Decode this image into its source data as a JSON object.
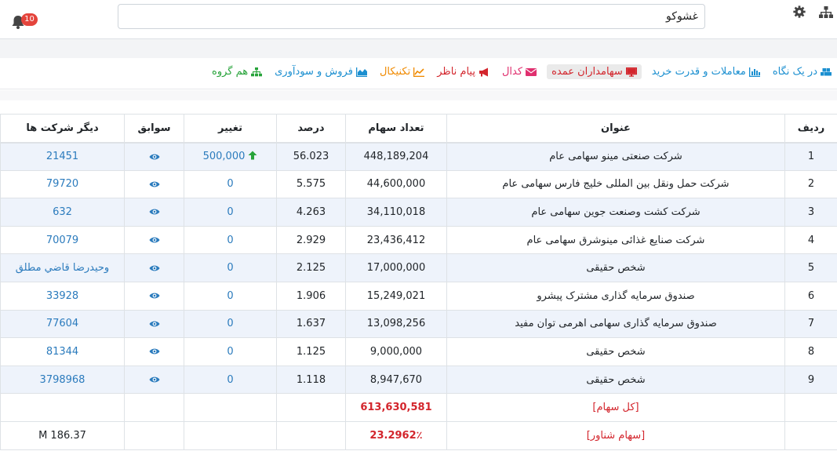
{
  "header": {
    "search_value": "غشوکو",
    "notification_count": "10",
    "org_icon": "sitemap-icon",
    "settings_icon": "gear-icon",
    "bell_icon": "bell-icon"
  },
  "nav": {
    "items": [
      {
        "label": "در یک نگاه",
        "icon": "cubes-icon",
        "color": "#1b8fd0"
      },
      {
        "label": "معاملات و قدرت خرید",
        "icon": "bar-chart-icon",
        "color": "#1b8fd0"
      },
      {
        "label": "سهامداران عمده",
        "icon": "desktop-icon",
        "color": "#d3252c"
      },
      {
        "label": "کدال",
        "icon": "envelope-icon",
        "color": "#e0306f"
      },
      {
        "label": "پیام ناظر",
        "icon": "bullhorn-icon",
        "color": "#d3252c"
      },
      {
        "label": "تکنیکال",
        "icon": "line-chart-icon",
        "color": "#f08a00"
      },
      {
        "label": "فروش و سودآوری",
        "icon": "area-chart-icon",
        "color": "#1b8fd0"
      },
      {
        "label": "هم گروه",
        "icon": "sitemap-icon",
        "color": "#27a33a"
      }
    ],
    "active_index": 2
  },
  "table": {
    "headers": [
      "ردیف",
      "عنوان",
      "تعداد سهام",
      "درصد",
      "تغییر",
      "سوابق",
      "دیگر شرکت ها"
    ],
    "rows": [
      {
        "rank": "1",
        "title": "شرکت صنعتی مینو سهامی عام",
        "shares": "448,189,204",
        "percent": "56.023",
        "change": "500,000",
        "change_up": true,
        "other": "21451"
      },
      {
        "rank": "2",
        "title": "شرکت حمل ونقل بین المللی خلیج فارس سهامی عام",
        "shares": "44,600,000",
        "percent": "5.575",
        "change": "0",
        "change_up": false,
        "other": "79720"
      },
      {
        "rank": "3",
        "title": "شرکت کشت وصنعت جوین سهامی عام",
        "shares": "34,110,018",
        "percent": "4.263",
        "change": "0",
        "change_up": false,
        "other": "632"
      },
      {
        "rank": "4",
        "title": "شرکت صنایع غذائی مینوشرق سهامی عام",
        "shares": "23,436,412",
        "percent": "2.929",
        "change": "0",
        "change_up": false,
        "other": "70079"
      },
      {
        "rank": "5",
        "title": "شخص حقیقی",
        "shares": "17,000,000",
        "percent": "2.125",
        "change": "0",
        "change_up": false,
        "other": "وحیدرضا قاضي مطلق"
      },
      {
        "rank": "6",
        "title": "صندوق سرمایه گذاری مشترک پیشرو",
        "shares": "15,249,021",
        "percent": "1.906",
        "change": "0",
        "change_up": false,
        "other": "33928"
      },
      {
        "rank": "7",
        "title": "صندوق سرمایه گذاری سهامی اهرمی توان مفید",
        "shares": "13,098,256",
        "percent": "1.637",
        "change": "0",
        "change_up": false,
        "other": "77604"
      },
      {
        "rank": "8",
        "title": "شخص حقیقی",
        "shares": "9,000,000",
        "percent": "1.125",
        "change": "0",
        "change_up": false,
        "other": "81344"
      },
      {
        "rank": "9",
        "title": "شخص حقیقی",
        "shares": "8,947,670",
        "percent": "1.118",
        "change": "0",
        "change_up": false,
        "other": "3798968"
      }
    ],
    "footer": [
      {
        "label": "[کل سهام]",
        "value": "613,630,581",
        "other": ""
      },
      {
        "label": "[سهام شناور]",
        "value": "23.2962٪",
        "other": "186.37 M"
      }
    ],
    "eye_icon": "eye-icon",
    "up_icon": "arrow-up-icon"
  },
  "colors": {
    "link": "#2b7bbd",
    "red": "#d3252c",
    "stripe": "#eef3fb",
    "up": "#27a33a"
  }
}
